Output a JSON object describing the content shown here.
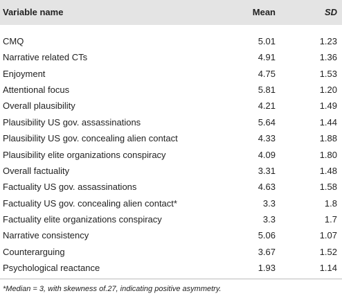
{
  "table": {
    "header": [
      "Variable name",
      "Mean",
      "SD"
    ],
    "rows": [
      [
        "CMQ",
        "5.01",
        "1.23"
      ],
      [
        "Narrative related CTs",
        "4.91",
        "1.36"
      ],
      [
        "Enjoyment",
        "4.75",
        "1.53"
      ],
      [
        "Attentional focus",
        "5.81",
        "1.20"
      ],
      [
        "Overall plausibility",
        "4.21",
        "1.49"
      ],
      [
        "Plausibility US gov. assassinations",
        "5.64",
        "1.44"
      ],
      [
        "Plausibility US gov. concealing alien contact",
        "4.33",
        "1.88"
      ],
      [
        "Plausibility elite organizations conspiracy",
        "4.09",
        "1.80"
      ],
      [
        "Overall factuality",
        "3.31",
        "1.48"
      ],
      [
        "Factuality US gov. assassinations",
        "4.63",
        "1.58"
      ],
      [
        "Factuality US gov. concealing alien contact*",
        "3.3",
        "1.8"
      ],
      [
        "Factuality elite organizations conspiracy",
        "3.3",
        "1.7"
      ],
      [
        "Narrative consistency",
        "5.06",
        "1.07"
      ],
      [
        "Counterarguing",
        "3.67",
        "1.52"
      ],
      [
        "Psychological reactance",
        "1.93",
        "1.14"
      ]
    ],
    "footnote": "*Median = 3, with skewness of.27, indicating positive asymmetry."
  }
}
